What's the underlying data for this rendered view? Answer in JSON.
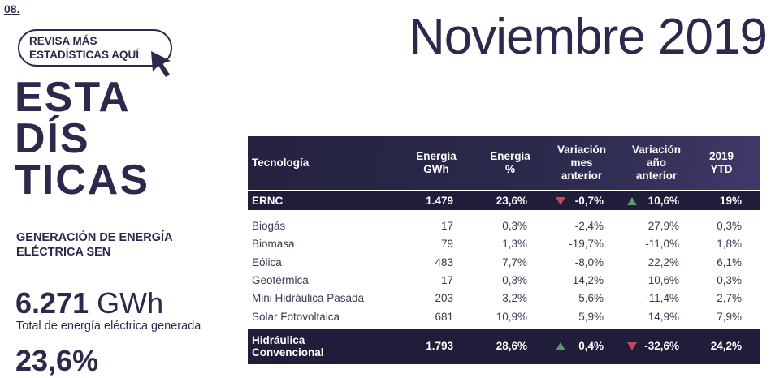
{
  "page_number": "08.",
  "button": {
    "lines": [
      "REVISA MÁS",
      "ESTADÍSTICAS AQUÍ"
    ]
  },
  "heading": {
    "lines": [
      "ESTA",
      "DÍS",
      "TICAS"
    ]
  },
  "subtitle": {
    "lines": [
      "GENERACIÓN DE ENERGÍA",
      "ELÉCTRICA SEN"
    ]
  },
  "stat": {
    "value": "6.271",
    "unit": "GWh",
    "description": "Total de energía eléctrica generada"
  },
  "stat2": {
    "value": "23,6%"
  },
  "title": "Noviembre 2019",
  "table": {
    "headers": [
      [
        "Tecnología"
      ],
      [
        "Energía",
        "GWh"
      ],
      [
        "Energía",
        "%"
      ],
      [
        "Variación",
        "mes",
        "anterior"
      ],
      [
        "Variación",
        "año",
        "anterior"
      ],
      [
        "2019",
        "YTD"
      ]
    ],
    "summary_top": {
      "cells": [
        "ERNC",
        "1.479",
        "23,6%",
        "-0,7%",
        "10,6%",
        "19%"
      ],
      "trend_mes": "down",
      "trend_ano": "up"
    },
    "rows": [
      [
        "Biogás",
        "17",
        "0,3%",
        "-2,4%",
        "27,9%",
        "0,3%"
      ],
      [
        "Biomasa",
        "79",
        "1,3%",
        "-19,7%",
        "-11,0%",
        "1,8%"
      ],
      [
        "Eólica",
        "483",
        "7,7%",
        "-8,0%",
        "22,2%",
        "6,1%"
      ],
      [
        "Geotérmica",
        "17",
        "0,3%",
        "14,2%",
        "-10,6%",
        "0,3%"
      ],
      [
        "Mini Hidráulica Pasada",
        "203",
        "3,2%",
        "5,6%",
        "-11,4%",
        "2,7%"
      ],
      [
        "Solar Fotovoltaica",
        "681",
        "10,9%",
        "5,9%",
        "14,9%",
        "7,9%"
      ]
    ],
    "summary_bottom": {
      "cells": [
        [
          "Hidráulica",
          "Convencional"
        ],
        "1.793",
        "28,6%",
        "0,4%",
        "-32,6%",
        "24,2%"
      ],
      "trend_mes": "up",
      "trend_ano": "down"
    }
  }
}
